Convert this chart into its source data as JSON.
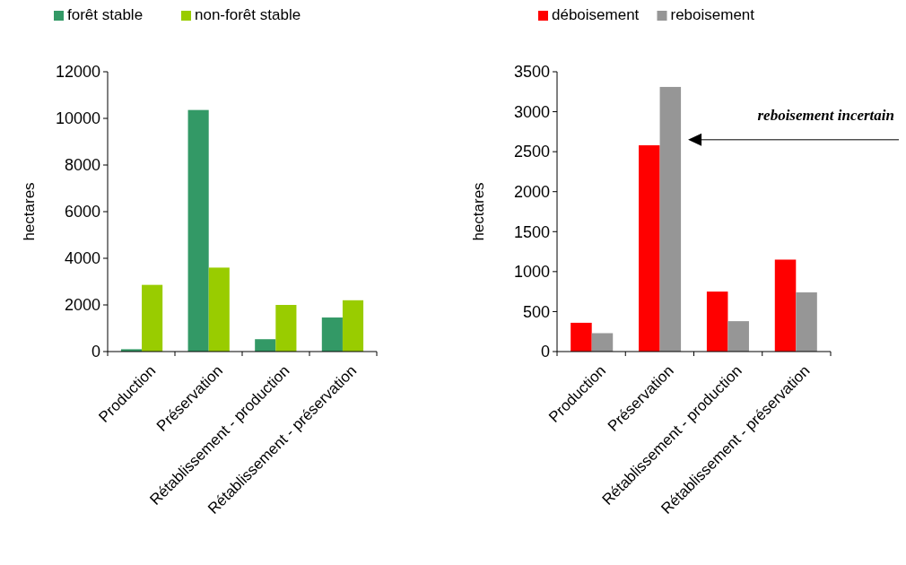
{
  "chart_data": [
    {
      "type": "bar",
      "ylabel": "hectares",
      "categories": [
        "Production",
        "Préservation",
        "Rétablissement - production",
        "Rétablissement - préservation"
      ],
      "series": [
        {
          "name": "forêt stable",
          "color": "#339966",
          "values": [
            100,
            10360,
            530,
            1460
          ]
        },
        {
          "name": "non-forêt stable",
          "color": "#99cc00",
          "values": [
            2860,
            3600,
            2000,
            2200
          ]
        }
      ],
      "ylim": [
        0,
        12000
      ],
      "yticks": [
        0,
        2000,
        4000,
        6000,
        8000,
        10000,
        12000
      ],
      "legend": "top",
      "grid": false
    },
    {
      "type": "bar",
      "ylabel": "hectares",
      "categories": [
        "Production",
        "Préservation",
        "Rétablissement - production",
        "Rétablissement - préservation"
      ],
      "series": [
        {
          "name": "déboisement",
          "color": "#ff0000",
          "values": [
            360,
            2580,
            750,
            1150
          ]
        },
        {
          "name": "reboisement",
          "color": "#969696",
          "values": [
            230,
            3310,
            380,
            740
          ]
        }
      ],
      "ylim": [
        0,
        3500
      ],
      "yticks": [
        0,
        500,
        1000,
        1500,
        2000,
        2500,
        3000,
        3500
      ],
      "legend": "top",
      "grid": false,
      "annotations": [
        "reboisement incertain"
      ]
    }
  ]
}
